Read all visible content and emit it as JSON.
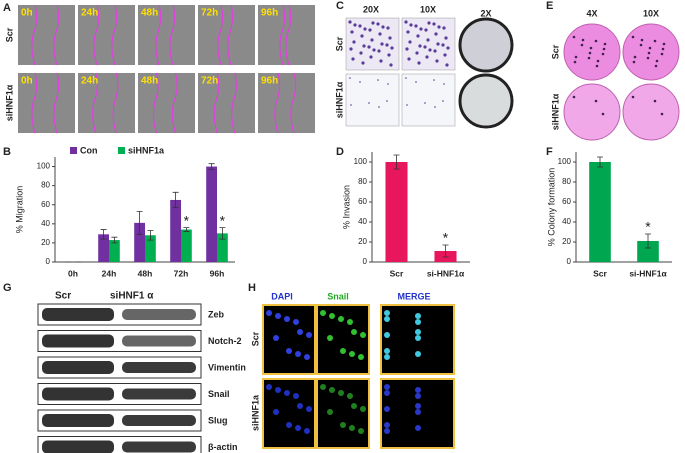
{
  "panel_labels": [
    "A",
    "B",
    "C",
    "D",
    "E",
    "F",
    "G",
    "H"
  ],
  "panel_a": {
    "rows": [
      "Scr",
      "siHNF1α"
    ],
    "times": [
      "0h",
      "24h",
      "48h",
      "72h",
      "96h"
    ]
  },
  "panel_c": {
    "columns": [
      "20X",
      "10X",
      "2X"
    ],
    "rows": [
      "Scr",
      "siHNF1α"
    ]
  },
  "panel_e": {
    "columns": [
      "4X",
      "10X"
    ],
    "rows": [
      "Scr",
      "siHNF1α"
    ]
  },
  "panel_g": {
    "columns": [
      "Scr",
      "siHNF1 α"
    ],
    "proteins": [
      "Zeb",
      "Notch-2",
      "Vimentin",
      "Snail",
      "Slug",
      "β-actin"
    ]
  },
  "panel_h": {
    "columns": [
      "DAPI",
      "Snail",
      "MERGE"
    ],
    "rows": [
      "Scr",
      "siHNF1a"
    ]
  },
  "chart_data": [
    {
      "type": "bar",
      "ylabel": "% Migration",
      "categories": [
        "0h",
        "24h",
        "48h",
        "72h",
        "96h"
      ],
      "series": [
        {
          "name": "Con",
          "color": "#7030a0",
          "values": [
            0,
            29,
            41,
            65,
            100
          ],
          "errors": [
            0,
            5,
            12,
            8,
            3
          ]
        },
        {
          "name": "siHNF1a",
          "color": "#00b050",
          "values": [
            0,
            23,
            28,
            34,
            30
          ],
          "errors": [
            0,
            3,
            5,
            2,
            6
          ]
        }
      ],
      "ylim": [
        0,
        110
      ],
      "yticks": [
        0,
        20,
        40,
        60,
        80,
        100
      ],
      "legend": "top",
      "annotations": [
        {
          "label": "*",
          "x": "72h",
          "series": "siHNF1a"
        },
        {
          "label": "*",
          "x": "96h",
          "series": "siHNF1a"
        }
      ]
    },
    {
      "type": "bar",
      "ylabel": "% Invasion",
      "categories": [
        "Scr",
        "si-HNF1α"
      ],
      "values": [
        100,
        11
      ],
      "errors": [
        7,
        6
      ],
      "color": "#e8175d",
      "ylim": [
        0,
        110
      ],
      "yticks": [
        0,
        20,
        40,
        60,
        80,
        100
      ],
      "annotations": [
        {
          "label": "*",
          "x": "si-HNF1α"
        }
      ]
    },
    {
      "type": "bar",
      "ylabel": "% Colony formation",
      "categories": [
        "Scr",
        "si-HNF1α"
      ],
      "values": [
        100,
        21
      ],
      "errors": [
        5,
        7
      ],
      "color": "#00a650",
      "ylim": [
        0,
        110
      ],
      "yticks": [
        0,
        20,
        40,
        60,
        80,
        100
      ],
      "annotations": [
        {
          "label": "*",
          "x": "si-HNF1α"
        }
      ]
    }
  ]
}
